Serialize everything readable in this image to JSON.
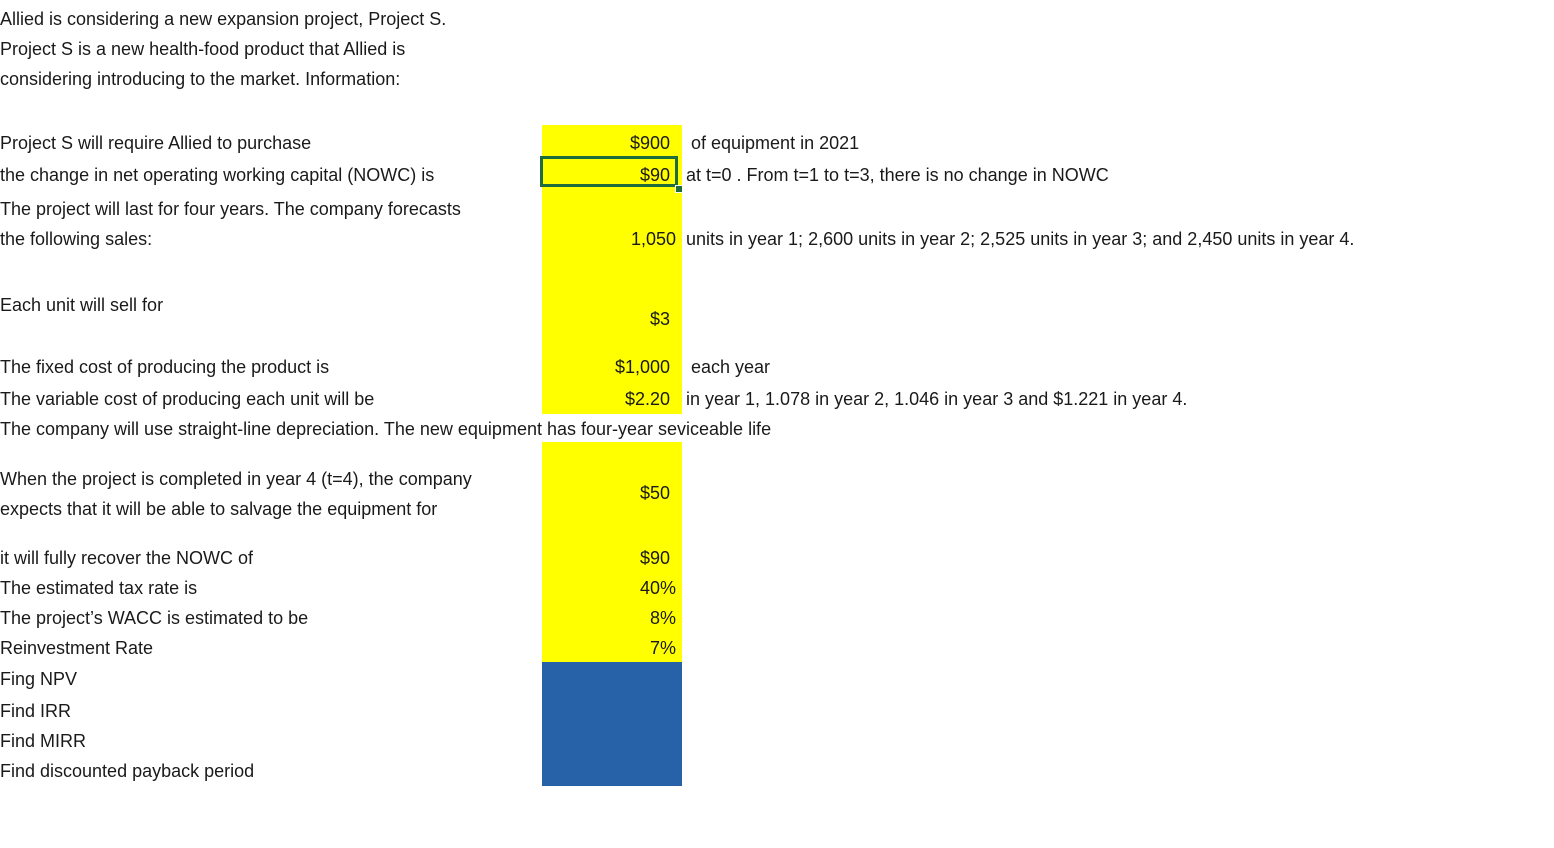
{
  "intro": {
    "line1": "Allied is considering a new expansion project, Project S.",
    "line2": "Project S is a new health-food product that Allied is",
    "line3": "considering introducing to the market. Information:"
  },
  "rows": {
    "equipment": {
      "label": "Project S will require Allied to purchase",
      "value": "$900",
      "note": "of equipment in 2021"
    },
    "nowc": {
      "label": "the change in net operating working capital (NOWC) is",
      "value": "$90",
      "note": "at t=0 . From t=1 to t=3, there is no change in NOWC"
    },
    "sales": {
      "label1": "The project will last for four years. The company forecasts",
      "label2": "the following sales:",
      "value": "1,050",
      "note": "units in year 1; 2,600 units in year 2; 2,525 units in year 3; and 2,450 units in year 4."
    },
    "price": {
      "label": "Each unit will sell for",
      "value": "$3"
    },
    "fixed_cost": {
      "label": "The fixed cost of producing the product is",
      "value": "$1,000",
      "note": "each year"
    },
    "variable_cost": {
      "label": "The variable cost of producing each unit will be",
      "value": "$2.20",
      "note": "in year 1, 1.078 in year 2, 1.046 in year 3 and $1.221 in year 4."
    },
    "depreciation": {
      "label": "The company will use straight-line depreciation. The new equipment has four-year seviceable life"
    },
    "salvage": {
      "label1": "When the project is completed in year 4 (t=4), the company",
      "label2": "expects that it will be able to salvage the equipment for",
      "value": "$50"
    },
    "nowc_recovery": {
      "label": "it will fully recover the NOWC of",
      "value": "$90"
    },
    "tax": {
      "label": "The estimated tax rate is",
      "value": "40%"
    },
    "wacc": {
      "label": "The project’s WACC is estimated to be",
      "value": "8%"
    },
    "reinvestment": {
      "label": "Reinvestment Rate",
      "value": "7%"
    }
  },
  "tasks": {
    "npv": "Fing NPV",
    "irr": "Find IRR",
    "mirr": "Find MIRR",
    "payback": "Find discounted payback period"
  },
  "colors": {
    "input_fill": "#ffff00",
    "answer_fill": "#2761a8",
    "selection_border": "#1e6b3c"
  }
}
